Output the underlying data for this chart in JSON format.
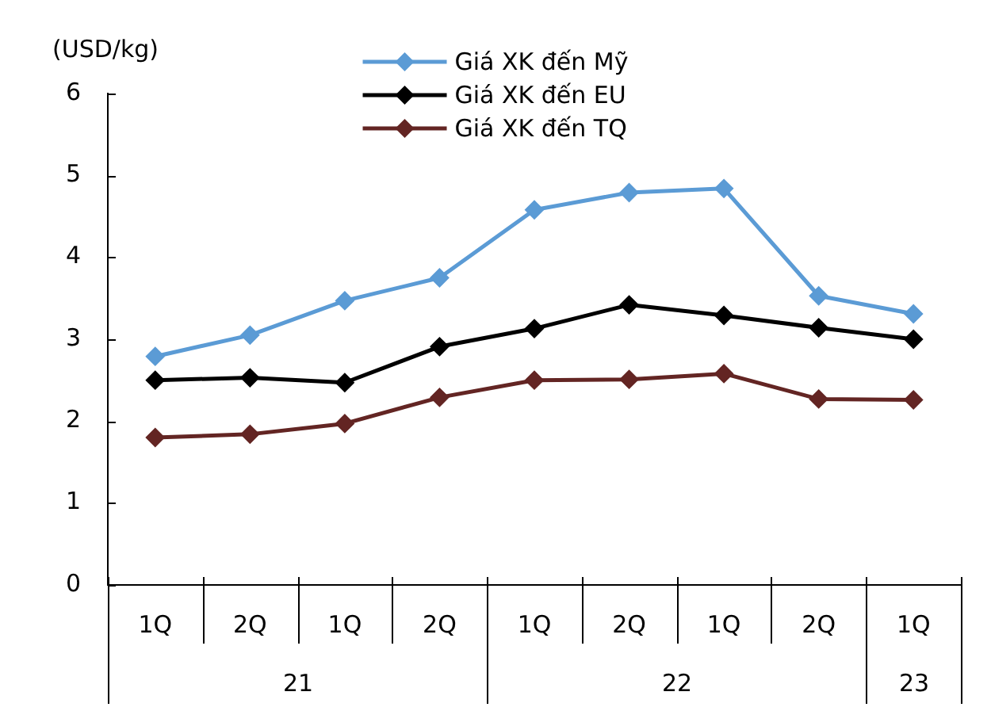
{
  "chart_data": {
    "type": "line",
    "ylabel": "(USD/kg)",
    "categories": [
      "1Q",
      "2Q",
      "1Q",
      "2Q",
      "1Q",
      "2Q",
      "1Q",
      "2Q",
      "1Q"
    ],
    "annotations": [
      "21",
      "22",
      "23"
    ],
    "series": [
      {
        "name": "Giá XK đến Mỹ",
        "color": "#5b9bd5",
        "values": [
          2.79,
          3.05,
          3.47,
          3.75,
          4.58,
          4.79,
          4.84,
          3.53,
          3.31
        ]
      },
      {
        "name": "Giá XK đến EU",
        "color": "#000000",
        "values": [
          2.5,
          2.53,
          2.47,
          2.91,
          3.13,
          3.42,
          3.29,
          3.14,
          3.0
        ]
      },
      {
        "name": "Giá XK đến TQ",
        "color": "#632523",
        "values": [
          1.8,
          1.84,
          1.97,
          2.29,
          2.5,
          2.51,
          2.58,
          2.27,
          2.26
        ]
      }
    ],
    "ylim": [
      0,
      6
    ],
    "yticks": [
      0,
      1,
      2,
      3,
      4,
      5,
      6
    ],
    "grid": false,
    "legend": "top",
    "marker": "diamond",
    "line_style": "solid"
  }
}
